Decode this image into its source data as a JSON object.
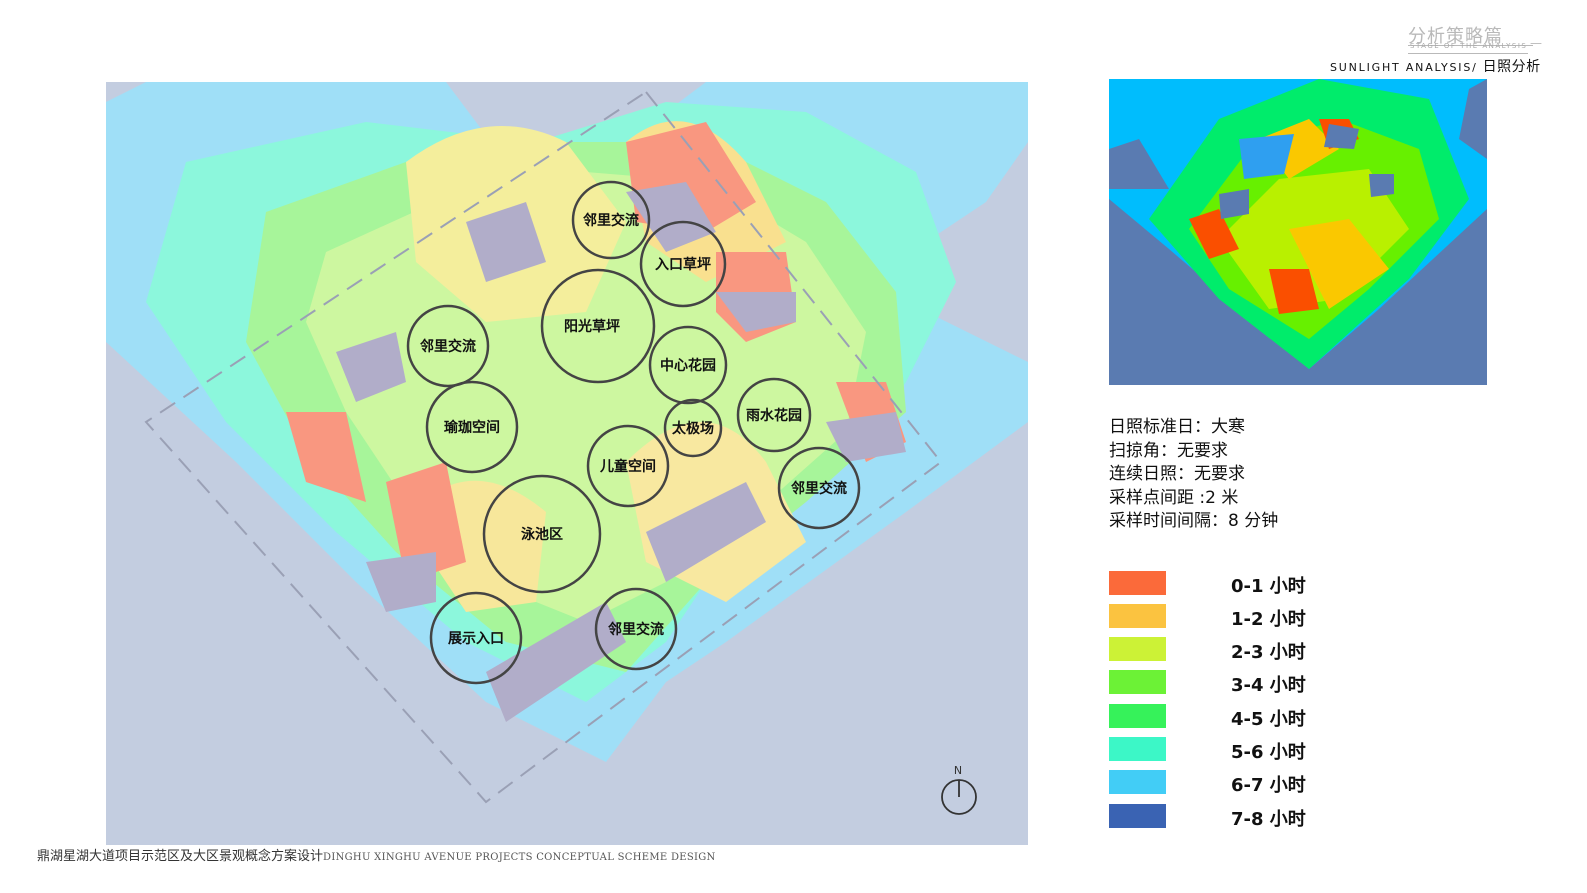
{
  "header": {
    "cn_title": "分析策略篇",
    "stage": "STAGE OF THE ANALYSIS",
    "en_title": "SUNLIGHT ANALYSIS/",
    "cn_sub": "日照分析"
  },
  "map": {
    "labels": [
      "邻里交流",
      "入口草坪",
      "阳光草坪",
      "邻里交流",
      "中心花园",
      "瑜珈空间",
      "太极场",
      "雨水花园",
      "儿童空间",
      "邻里交流",
      "泳池区",
      "展示入口",
      "邻里交流"
    ],
    "compass": "N"
  },
  "params": [
    "日照标准日：大寒",
    "扫掠角：无要求",
    "连续日照：无要求",
    "采样点间距 :2 米",
    "采样时间间隔：8 分钟"
  ],
  "legend": [
    {
      "label": "0-1 小时",
      "color": "#fb6a3a"
    },
    {
      "label": "1-2 小时",
      "color": "#fbc340"
    },
    {
      "label": "2-3 小时",
      "color": "#ccf236"
    },
    {
      "label": "3-4 小时",
      "color": "#6cf236"
    },
    {
      "label": "4-5 小时",
      "color": "#36f25a"
    },
    {
      "label": "5-6 小时",
      "color": "#3cf7c7"
    },
    {
      "label": "6-7 小时",
      "color": "#42cdf6"
    },
    {
      "label": "7-8 小时",
      "color": "#3a63b3"
    }
  ],
  "footer": {
    "cn": "鼎湖星湖大道项目示范区及大区景观概念方案设计",
    "en": "DINGHU XINGHU AVENUE PROJECTS CONCEPTUAL SCHEME DESIGN"
  }
}
